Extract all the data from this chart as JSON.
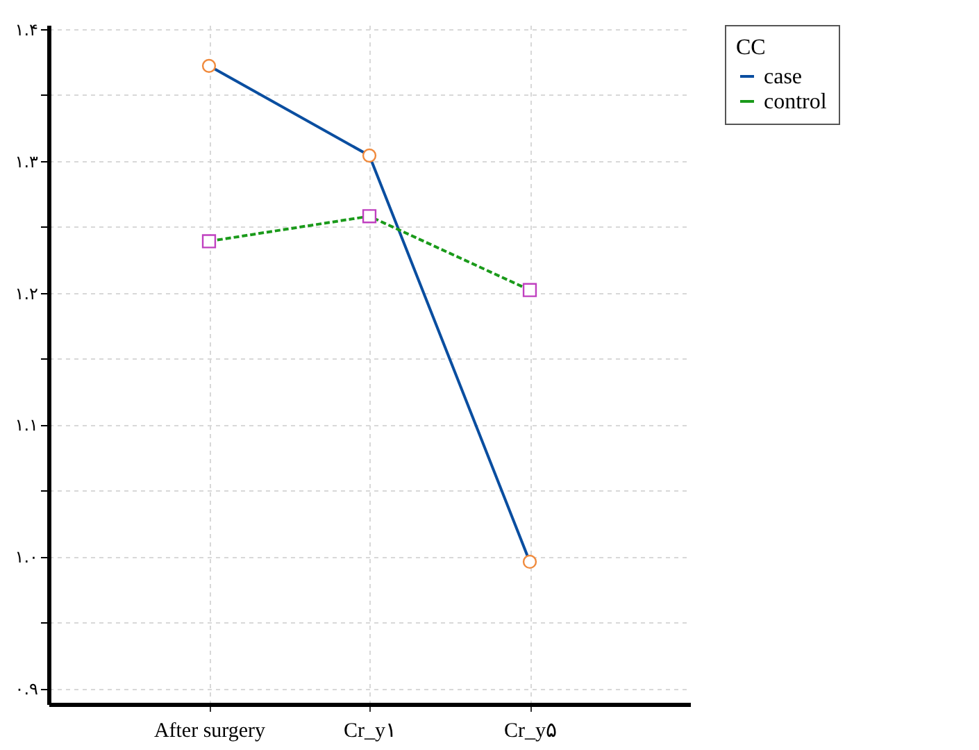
{
  "chart_data": {
    "type": "line",
    "categories": [
      "After surgery",
      "Cr_y۱",
      "Cr_y۵"
    ],
    "series": [
      {
        "name": "case",
        "color": "#0a4ea0",
        "colors": [
          "#f08a3c",
          "#f08a3c",
          "#f08a3c"
        ],
        "marker": "circle",
        "line_style": "solid",
        "values": [
          1.372,
          1.304,
          0.996
        ]
      },
      {
        "name": "control",
        "color": "#1a9a1a",
        "colors": [
          "#c040c0",
          "#c040c0",
          "#c040c0"
        ],
        "marker": "square",
        "line_style": "dashed",
        "values": [
          1.239,
          1.258,
          1.202
        ]
      }
    ],
    "legend_title": "CC",
    "legend": "right",
    "grid": true,
    "ylim": [
      0.888,
      1.403
    ],
    "yticks": [
      {
        "value": 0.9,
        "label": "۰.۹"
      },
      {
        "value": 0.95,
        "label": null
      },
      {
        "value": 1.0,
        "label": "۱.۰"
      },
      {
        "value": 1.05,
        "label": null
      },
      {
        "value": 1.1,
        "label": "۱.۱"
      },
      {
        "value": 1.15,
        "label": null
      },
      {
        "value": 1.2,
        "label": "۱.۲"
      },
      {
        "value": 1.25,
        "label": null
      },
      {
        "value": 1.3,
        "label": "۱.۳"
      },
      {
        "value": 1.35,
        "label": null
      },
      {
        "value": 1.4,
        "label": "۱.۴"
      }
    ]
  }
}
